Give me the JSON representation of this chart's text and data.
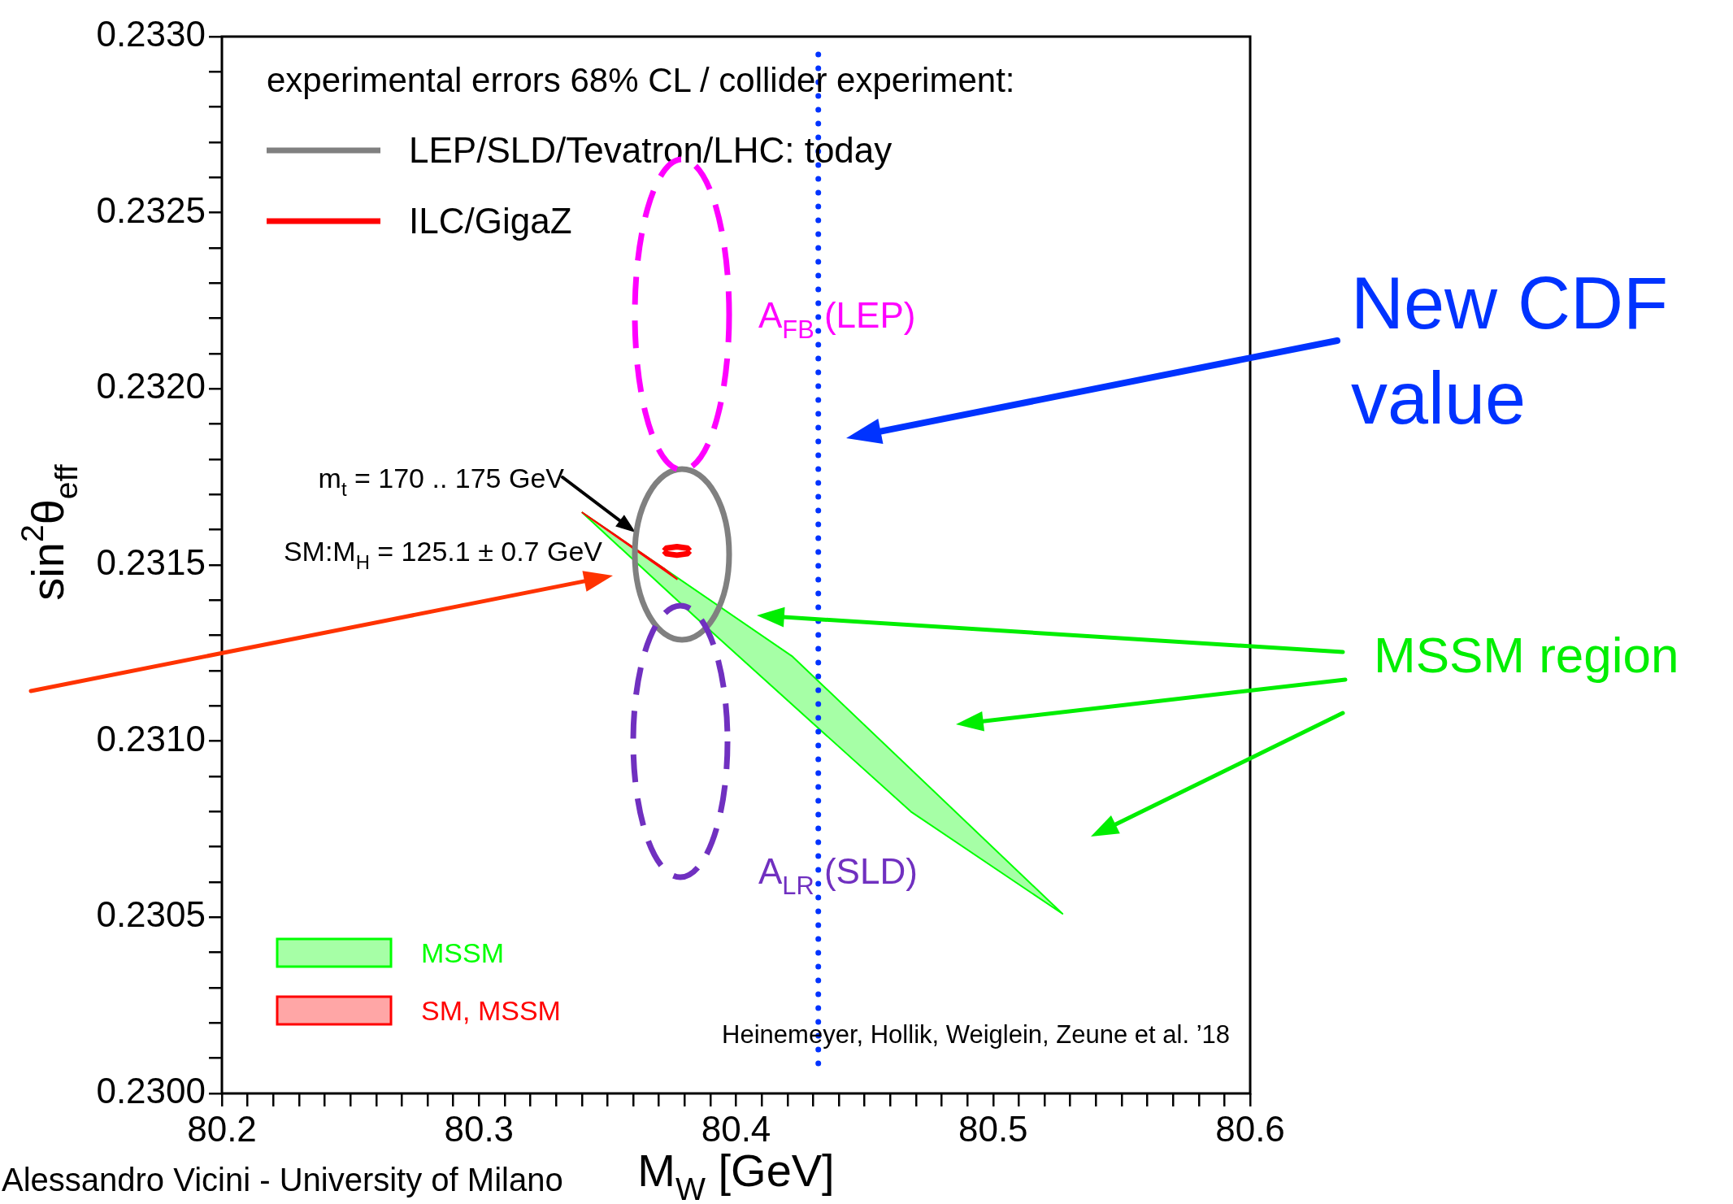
{
  "chart_data": {
    "type": "line",
    "xlabel": "M$_{W}$ [GeV]",
    "ylabel": "sin$^{2}$θ$_{eff}$",
    "legend_title": "experimental errors 68% CL / collider experiment:",
    "legend": "left",
    "xlim": [
      80.2,
      80.6
    ],
    "ylim": [
      0.23,
      0.233
    ],
    "xticks": [
      80.2,
      {
        "value": 80.21,
        "label": null
      },
      {
        "value": 80.22,
        "label": null
      },
      {
        "value": 80.23,
        "label": null
      },
      {
        "value": 80.24,
        "label": null
      },
      {
        "value": 80.25,
        "label": null
      },
      {
        "value": 80.26,
        "label": null
      },
      {
        "value": 80.27,
        "label": null
      },
      {
        "value": 80.28,
        "label": null
      },
      {
        "value": 80.29,
        "label": null
      },
      80.3,
      {
        "value": 80.31,
        "label": null
      },
      {
        "value": 80.32,
        "label": null
      },
      {
        "value": 80.33,
        "label": null
      },
      {
        "value": 80.34,
        "label": null
      },
      {
        "value": 80.35,
        "label": null
      },
      {
        "value": 80.36,
        "label": null
      },
      {
        "value": 80.37,
        "label": null
      },
      {
        "value": 80.38,
        "label": null
      },
      {
        "value": 80.39,
        "label": null
      },
      80.4,
      {
        "value": 80.41,
        "label": null
      },
      {
        "value": 80.42,
        "label": null
      },
      {
        "value": 80.43,
        "label": null
      },
      {
        "value": 80.44,
        "label": null
      },
      {
        "value": 80.45,
        "label": null
      },
      {
        "value": 80.46,
        "label": null
      },
      {
        "value": 80.47,
        "label": null
      },
      {
        "value": 80.48,
        "label": null
      },
      {
        "value": 80.49,
        "label": null
      },
      80.5,
      {
        "value": 80.51,
        "label": null
      },
      {
        "value": 80.52,
        "label": null
      },
      {
        "value": 80.53,
        "label": null
      },
      {
        "value": 80.54,
        "label": null
      },
      {
        "value": 80.55,
        "label": null
      },
      {
        "value": 80.56,
        "label": null
      },
      {
        "value": 80.57,
        "label": null
      },
      {
        "value": 80.58,
        "label": null
      },
      {
        "value": 80.59,
        "label": null
      },
      80.6
    ],
    "yticks": [
      {
        "value": 0.23,
        "label": "0.2300"
      },
      {
        "value": 0.2301,
        "label": null
      },
      {
        "value": 0.2302,
        "label": null
      },
      {
        "value": 0.2303,
        "label": null
      },
      {
        "value": 0.2304,
        "label": null
      },
      0.2305,
      {
        "value": 0.2306,
        "label": null
      },
      {
        "value": 0.2307,
        "label": null
      },
      {
        "value": 0.2308,
        "label": null
      },
      {
        "value": 0.2309,
        "label": null
      },
      {
        "value": 0.231,
        "label": "0.2310"
      },
      {
        "value": 0.2311,
        "label": null
      },
      {
        "value": 0.2312,
        "label": null
      },
      {
        "value": 0.2313,
        "label": null
      },
      {
        "value": 0.2314,
        "label": null
      },
      0.2315,
      {
        "value": 0.2316,
        "label": null
      },
      {
        "value": 0.2317,
        "label": null
      },
      {
        "value": 0.2318,
        "label": null
      },
      {
        "value": 0.2319,
        "label": null
      },
      {
        "value": 0.232,
        "label": "0.2320"
      },
      {
        "value": 0.2321,
        "label": null
      },
      {
        "value": 0.2322,
        "label": null
      },
      {
        "value": 0.2323,
        "label": null
      },
      {
        "value": 0.2324,
        "label": null
      },
      0.2325,
      {
        "value": 0.2326,
        "label": null
      },
      {
        "value": 0.2327,
        "label": null
      },
      {
        "value": 0.2328,
        "label": null
      },
      {
        "value": 0.2329,
        "label": null
      },
      {
        "value": 0.233,
        "label": "0.2330"
      }
    ],
    "series": [
      {
        "name": "MSSM",
        "type": "area",
        "color": "#00ff00",
        "x": [
          80.34,
          80.422,
          80.527,
          80.468,
          80.386,
          80.34
        ],
        "values": [
          0.23165,
          0.23124,
          0.23051,
          0.2308,
          0.23134,
          0.23165
        ]
      },
      {
        "name": "SM, MSSM",
        "type": "area",
        "color": "#ff0000",
        "x": [
          80.34,
          80.377,
          80.372,
          80.34
        ],
        "values": [
          0.23165,
          0.23146,
          0.23149,
          0.23165
        ]
      },
      {
        "name": "ILC/GigaZ",
        "color": "#ff0000",
        "line_style": "solid",
        "x": [
          80.372,
          80.373,
          80.377,
          80.381,
          80.382
        ],
        "values": [
          0.23154,
          0.231548,
          0.231552,
          0.231548,
          0.23154
        ]
      },
      {
        "color": "#ff0000",
        "line_style": "solid",
        "x": [
          80.372,
          80.373,
          80.377,
          80.381,
          80.382
        ],
        "values": [
          0.23154,
          0.231532,
          0.231528,
          0.231532,
          0.23154
        ]
      }
    ],
    "ref_lines": [
      {
        "axis": "x",
        "value": 80.432,
        "color": "#0033ff",
        "line_style": "dotted"
      }
    ],
    "annotations": [
      "A$_{FB}$ (LEP)",
      "A$_{LR}$ (SLD)",
      "m$_{t}$ = 170 .. 175 GeV",
      "SM:M$_{H}$ = 125.1 ± 0.7 GeV",
      "New CDF value",
      "MSSM region",
      "Heinemeyer, Hollik, Weiglein, Zeune et al. ’18",
      "Alessandro Vicini - University of Milano",
      "LEP/SLD/Tevatron/LHC: today"
    ]
  }
}
